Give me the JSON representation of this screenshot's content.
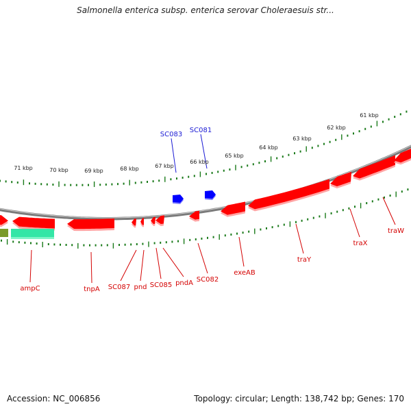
{
  "title": "Salmonella enterica subsp. enterica serovar Choleraesuis str...",
  "accession": "Accession: NC_006856",
  "summary": "Topology: circular; Length: 138,742 bp; Genes: 170",
  "scale_labels": [
    "71 kbp",
    "70 kbp",
    "69 kbp",
    "68 kbp",
    "67 kbp",
    "66 kbp",
    "65 kbp",
    "64 kbp",
    "63 kbp",
    "62 kbp",
    "61 kbp"
  ],
  "outer_gene_labels": [
    "SC083",
    "SC081"
  ],
  "inner_gene_labels": [
    "ampC",
    "tnpA",
    "SC087",
    "pnd",
    "SC085",
    "pndA",
    "SC082",
    "exeAB",
    "traY",
    "traX",
    "traW"
  ],
  "colors": {
    "forward_gene": "#ff0000",
    "reverse_gene_blue": "#0000ff",
    "backbone": "#7a7a7a",
    "tick": "#1a7a1a",
    "label_red": "#d40000",
    "label_blue": "#1a1ad4",
    "teal_feature": "#33e6a6",
    "olive_feature": "#7a9a2a"
  }
}
